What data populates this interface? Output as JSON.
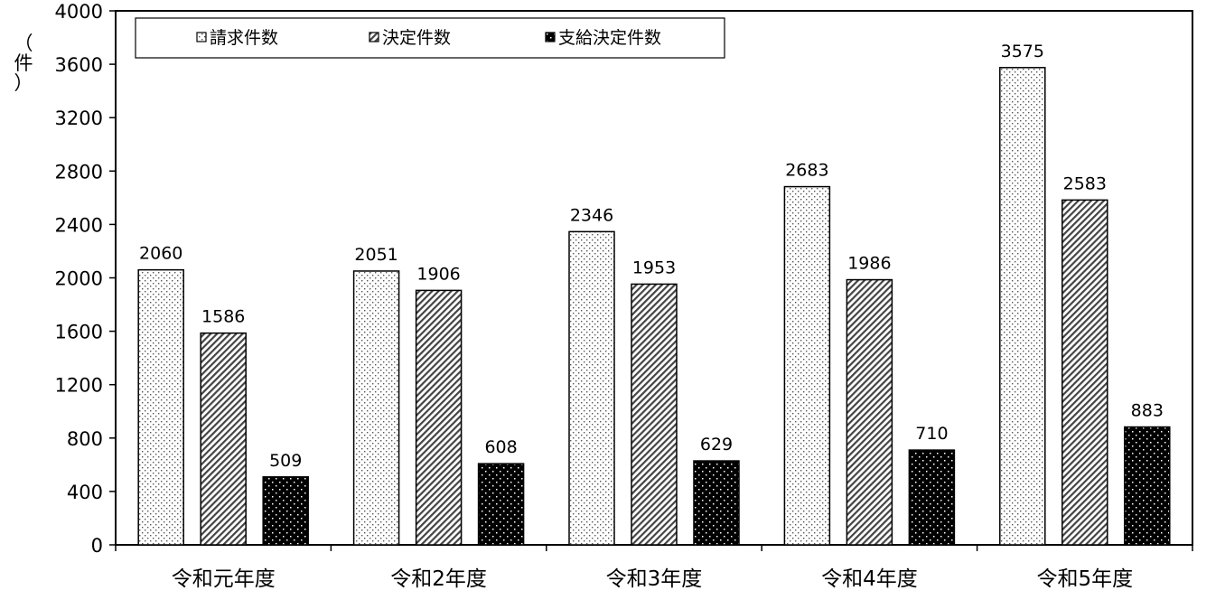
{
  "chart_data": {
    "type": "bar",
    "ylabel": "（件）",
    "categories": [
      "令和元年度",
      "令和2年度",
      "令和3年度",
      "令和4年度",
      "令和5年度"
    ],
    "series": [
      {
        "name": "請求件数",
        "values": [
          2060,
          2051,
          2346,
          2683,
          3575
        ]
      },
      {
        "name": "決定件数",
        "values": [
          1586,
          1906,
          1953,
          1986,
          2583
        ]
      },
      {
        "name": "支給決定件数",
        "values": [
          509,
          608,
          629,
          710,
          883
        ]
      }
    ],
    "ylim": [
      0,
      4000
    ],
    "yticks": [
      0,
      400,
      800,
      1200,
      1600,
      2000,
      2400,
      2800,
      3200,
      3600,
      4000
    ],
    "grid": false,
    "legend_position": "top-left",
    "show_data_labels": true
  }
}
